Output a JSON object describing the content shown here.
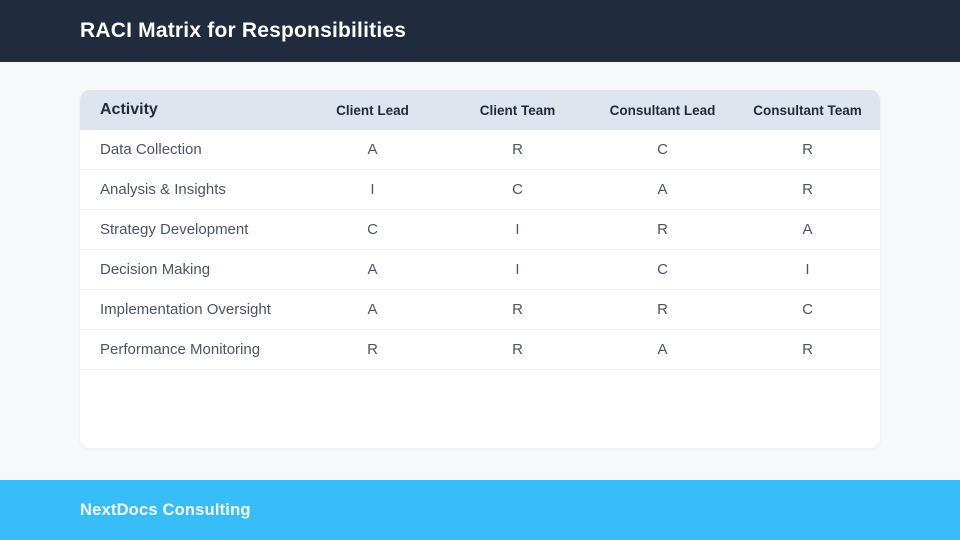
{
  "header": {
    "title": "RACI Matrix for Responsibilities"
  },
  "table": {
    "columns": [
      "Activity",
      "Client Lead",
      "Client Team",
      "Consultant Lead",
      "Consultant Team"
    ],
    "rows": [
      {
        "activity": "Data Collection",
        "values": [
          "A",
          "R",
          "C",
          "R"
        ]
      },
      {
        "activity": "Analysis & Insights",
        "values": [
          "I",
          "C",
          "A",
          "R"
        ]
      },
      {
        "activity": "Strategy Development",
        "values": [
          "C",
          "I",
          "R",
          "A"
        ]
      },
      {
        "activity": "Decision Making",
        "values": [
          "A",
          "I",
          "C",
          "I"
        ]
      },
      {
        "activity": "Implementation Oversight",
        "values": [
          "A",
          "R",
          "R",
          "C"
        ]
      },
      {
        "activity": "Performance Monitoring",
        "values": [
          "R",
          "R",
          "A",
          "R"
        ]
      }
    ]
  },
  "footer": {
    "brand": "NextDocs Consulting"
  },
  "colors": {
    "topbar_bg": "#202b3d",
    "page_bg": "#f7f8fa",
    "card_bg": "#ffffff",
    "table_header_bg": "#dde4ee",
    "row_text": "#4a5568",
    "header_text": "#1f2a3c",
    "divider": "#eef1f5",
    "footer_bg": "#38bdf8",
    "footer_text": "#f6fbff"
  }
}
